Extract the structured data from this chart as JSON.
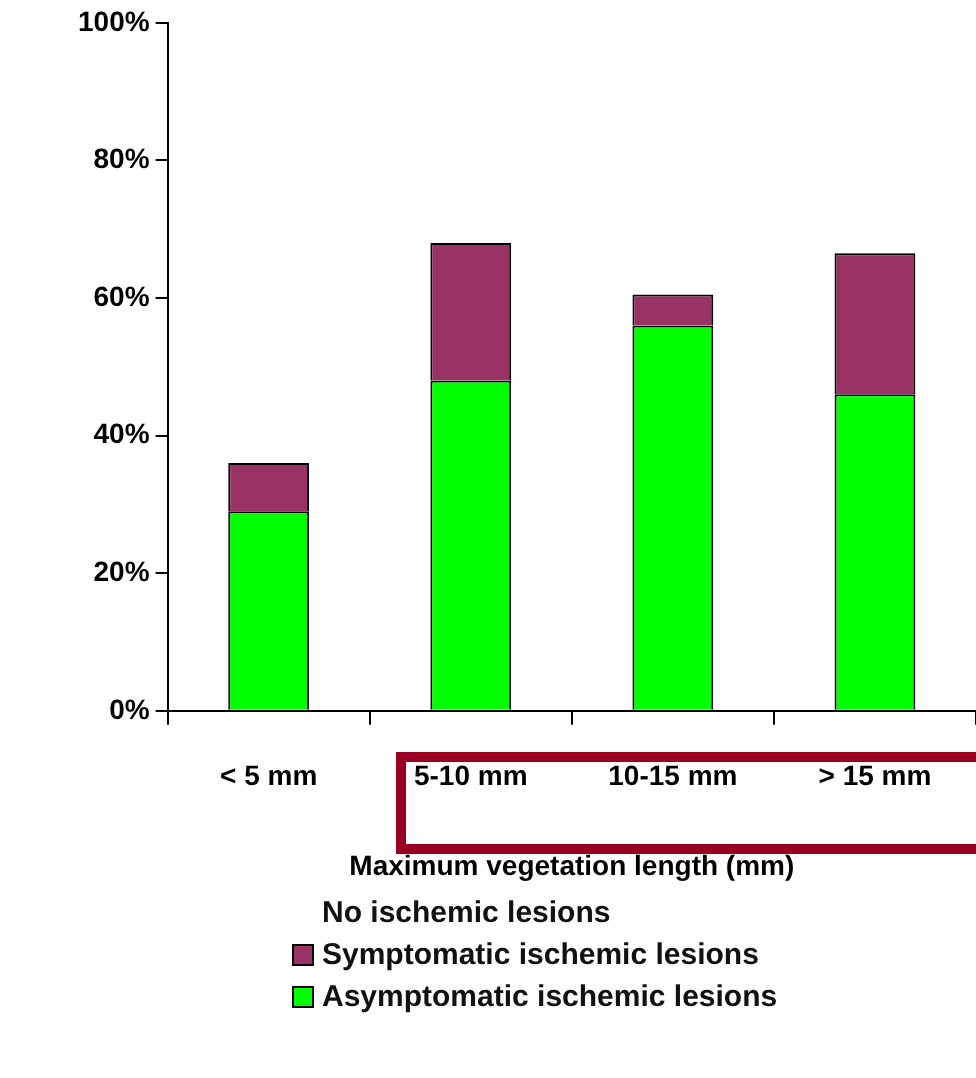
{
  "chart_data": {
    "type": "bar",
    "stacked": true,
    "xlabel": "Maximum vegetation length (mm)",
    "categories": [
      "< 5 mm",
      "5-10 mm",
      "10-15 mm",
      "> 15 mm"
    ],
    "series": [
      {
        "name": "Asymptomatic ischemic lesions",
        "color": "#00ff00",
        "values": [
          29,
          48,
          56,
          46
        ]
      },
      {
        "name": "Symptomatic ischemic lesions",
        "color": "#993366",
        "values": [
          7,
          20,
          4.5,
          20.5
        ]
      }
    ],
    "annotations": [
      "No ischemic lesions"
    ],
    "ylim": [
      0,
      100
    ],
    "yticks": [
      {
        "value": 0,
        "label": "0%"
      },
      {
        "value": 20,
        "label": "20%"
      },
      {
        "value": 40,
        "label": "40%"
      },
      {
        "value": 60,
        "label": "60%"
      },
      {
        "value": 80,
        "label": "80%"
      },
      {
        "value": 100,
        "label": "100%"
      }
    ],
    "legend": "bottom"
  }
}
